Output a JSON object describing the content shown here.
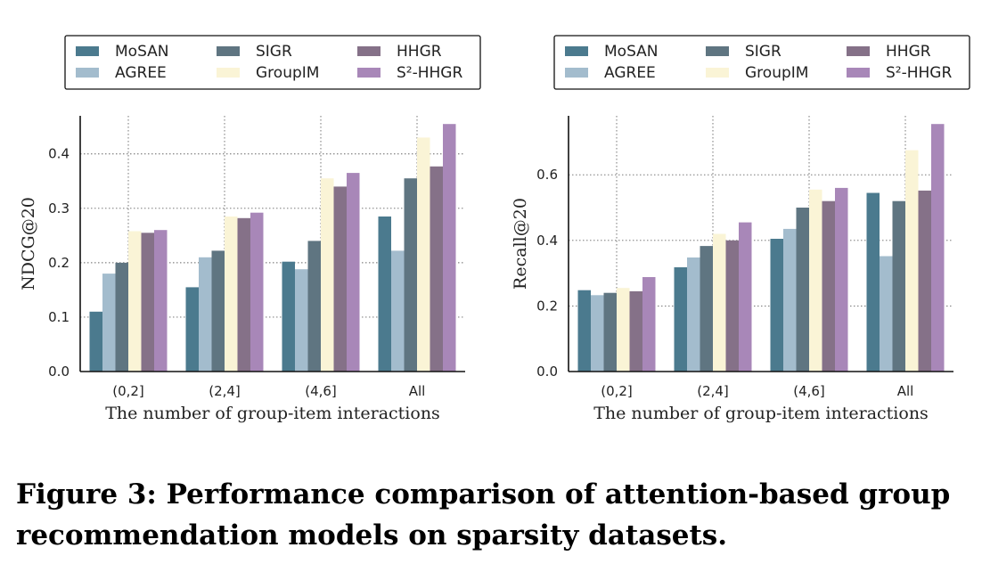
{
  "caption": {
    "line1": "Figure 3: Performance comparison of attention-based group",
    "line2": "recommendation models on sparsity datasets."
  },
  "chart_data": [
    {
      "type": "bar",
      "xlabel": "The number of group-item interactions",
      "ylabel": "NDCG@20",
      "ylim": [
        0,
        0.47
      ],
      "yticks": [
        "0.0",
        "0.1",
        "0.2",
        "0.3",
        "0.4"
      ],
      "categories": [
        "(0,2]",
        "(2,4]",
        "(4,6]",
        "All"
      ],
      "grid": true,
      "legend_position": "top",
      "series": [
        {
          "name": "MoSAN",
          "color": "#4b7a8e",
          "values": [
            0.11,
            0.155,
            0.202,
            0.285
          ]
        },
        {
          "name": "AGREE",
          "color": "#a3bccd",
          "values": [
            0.18,
            0.21,
            0.188,
            0.222
          ]
        },
        {
          "name": "SIGR",
          "color": "#5f7581",
          "values": [
            0.2,
            0.222,
            0.24,
            0.355
          ]
        },
        {
          "name": "GroupIM",
          "color": "#faf4d6",
          "values": [
            0.258,
            0.285,
            0.355,
            0.43
          ]
        },
        {
          "name": "HHGR",
          "color": "#857188",
          "values": [
            0.255,
            0.282,
            0.34,
            0.377
          ]
        },
        {
          "name": "S²-HHGR",
          "color": "#a887b8",
          "values": [
            0.26,
            0.292,
            0.365,
            0.455
          ]
        }
      ]
    },
    {
      "type": "bar",
      "xlabel": "The number of group-item interactions",
      "ylabel": "Recall@20",
      "ylim": [
        0,
        0.78
      ],
      "yticks": [
        "0.0",
        "0.2",
        "0.4",
        "0.6"
      ],
      "categories": [
        "(0,2]",
        "(2,4]",
        "(4,6]",
        "All"
      ],
      "grid": true,
      "legend_position": "top",
      "series": [
        {
          "name": "MoSAN",
          "color": "#4b7a8e",
          "values": [
            0.248,
            0.318,
            0.405,
            0.545
          ]
        },
        {
          "name": "AGREE",
          "color": "#a3bccd",
          "values": [
            0.233,
            0.348,
            0.435,
            0.352
          ]
        },
        {
          "name": "SIGR",
          "color": "#5f7581",
          "values": [
            0.24,
            0.383,
            0.5,
            0.52
          ]
        },
        {
          "name": "GroupIM",
          "color": "#faf4d6",
          "values": [
            0.255,
            0.42,
            0.555,
            0.675
          ]
        },
        {
          "name": "HHGR",
          "color": "#857188",
          "values": [
            0.245,
            0.4,
            0.52,
            0.552
          ]
        },
        {
          "name": "S²-HHGR",
          "color": "#a887b8",
          "values": [
            0.288,
            0.455,
            0.56,
            0.755
          ]
        }
      ]
    }
  ]
}
